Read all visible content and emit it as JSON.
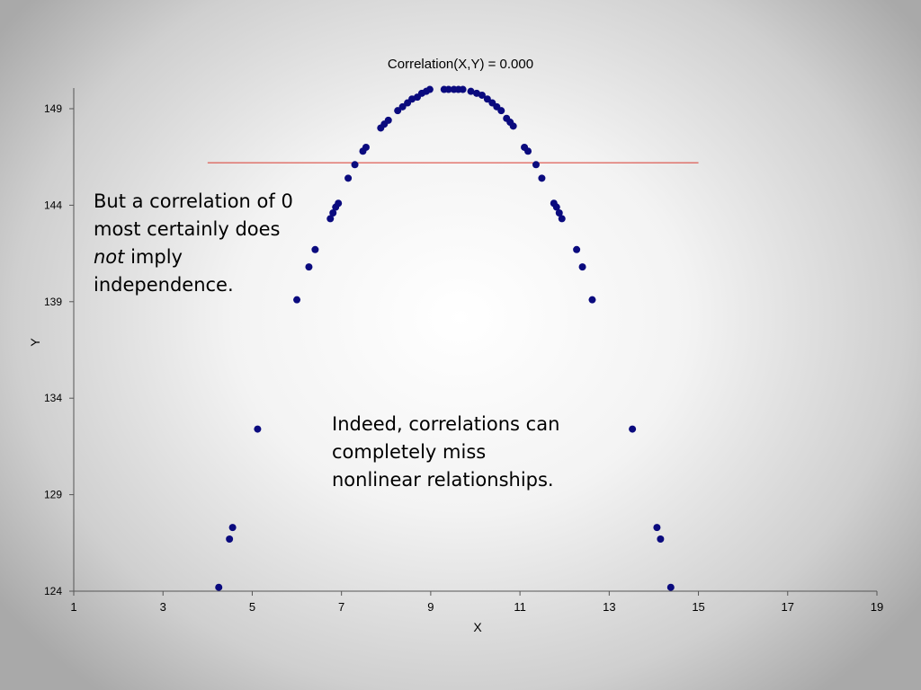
{
  "chart_data": {
    "type": "scatter",
    "title": "Correlation(X,Y) = 0.000",
    "xlabel": "X",
    "ylabel": "Y",
    "xlim": [
      1,
      19
    ],
    "ylim": [
      124,
      150
    ],
    "x_ticks": [
      1,
      3,
      5,
      7,
      9,
      11,
      13,
      15,
      17,
      19
    ],
    "y_ticks": [
      124,
      129,
      134,
      139,
      144,
      149
    ],
    "marker_color": "#0a0a7e",
    "reference_line": {
      "y": 146.2,
      "x_range": [
        4,
        15
      ],
      "color": "#d9382e"
    },
    "points": [
      {
        "x": 4.25,
        "y": 124.2
      },
      {
        "x": 4.49,
        "y": 126.7
      },
      {
        "x": 4.56,
        "y": 127.3
      },
      {
        "x": 5.12,
        "y": 132.4
      },
      {
        "x": 6.0,
        "y": 139.1
      },
      {
        "x": 6.27,
        "y": 140.8
      },
      {
        "x": 6.41,
        "y": 141.7
      },
      {
        "x": 6.75,
        "y": 143.3
      },
      {
        "x": 6.81,
        "y": 143.6
      },
      {
        "x": 6.87,
        "y": 143.9
      },
      {
        "x": 6.93,
        "y": 144.1
      },
      {
        "x": 7.15,
        "y": 145.4
      },
      {
        "x": 7.3,
        "y": 146.1
      },
      {
        "x": 7.48,
        "y": 146.8
      },
      {
        "x": 7.55,
        "y": 147.0
      },
      {
        "x": 7.88,
        "y": 148.0
      },
      {
        "x": 7.96,
        "y": 148.2
      },
      {
        "x": 8.05,
        "y": 148.4
      },
      {
        "x": 8.26,
        "y": 148.9
      },
      {
        "x": 8.37,
        "y": 149.1
      },
      {
        "x": 8.48,
        "y": 149.3
      },
      {
        "x": 8.58,
        "y": 149.5
      },
      {
        "x": 8.7,
        "y": 149.6
      },
      {
        "x": 8.8,
        "y": 149.8
      },
      {
        "x": 8.9,
        "y": 149.9
      },
      {
        "x": 8.98,
        "y": 150.0
      },
      {
        "x": 9.3,
        "y": 150.0
      },
      {
        "x": 9.4,
        "y": 150.0
      },
      {
        "x": 9.52,
        "y": 150.0
      },
      {
        "x": 9.62,
        "y": 150.0
      },
      {
        "x": 9.72,
        "y": 150.0
      },
      {
        "x": 9.9,
        "y": 149.9
      },
      {
        "x": 10.03,
        "y": 149.8
      },
      {
        "x": 10.15,
        "y": 149.7
      },
      {
        "x": 10.27,
        "y": 149.5
      },
      {
        "x": 10.38,
        "y": 149.3
      },
      {
        "x": 10.48,
        "y": 149.1
      },
      {
        "x": 10.58,
        "y": 148.9
      },
      {
        "x": 10.7,
        "y": 148.5
      },
      {
        "x": 10.78,
        "y": 148.3
      },
      {
        "x": 10.85,
        "y": 148.1
      },
      {
        "x": 11.1,
        "y": 147.0
      },
      {
        "x": 11.18,
        "y": 146.8
      },
      {
        "x": 11.36,
        "y": 146.1
      },
      {
        "x": 11.49,
        "y": 145.4
      },
      {
        "x": 11.76,
        "y": 144.1
      },
      {
        "x": 11.82,
        "y": 143.9
      },
      {
        "x": 11.88,
        "y": 143.6
      },
      {
        "x": 11.94,
        "y": 143.3
      },
      {
        "x": 12.27,
        "y": 141.7
      },
      {
        "x": 12.4,
        "y": 140.8
      },
      {
        "x": 12.62,
        "y": 139.1
      },
      {
        "x": 13.52,
        "y": 132.4
      },
      {
        "x": 14.07,
        "y": 127.3
      },
      {
        "x": 14.15,
        "y": 126.7
      },
      {
        "x": 14.38,
        "y": 124.2
      }
    ]
  },
  "callouts": {
    "top_line1": "But a correlation of 0",
    "top_line2": "most certainly does",
    "top_line3_em": "not",
    "top_line3_rest": " imply",
    "top_line4": "independence.",
    "bottom_line1": "Indeed, correlations can",
    "bottom_line2": "completely miss",
    "bottom_line3": "nonlinear relationships."
  }
}
